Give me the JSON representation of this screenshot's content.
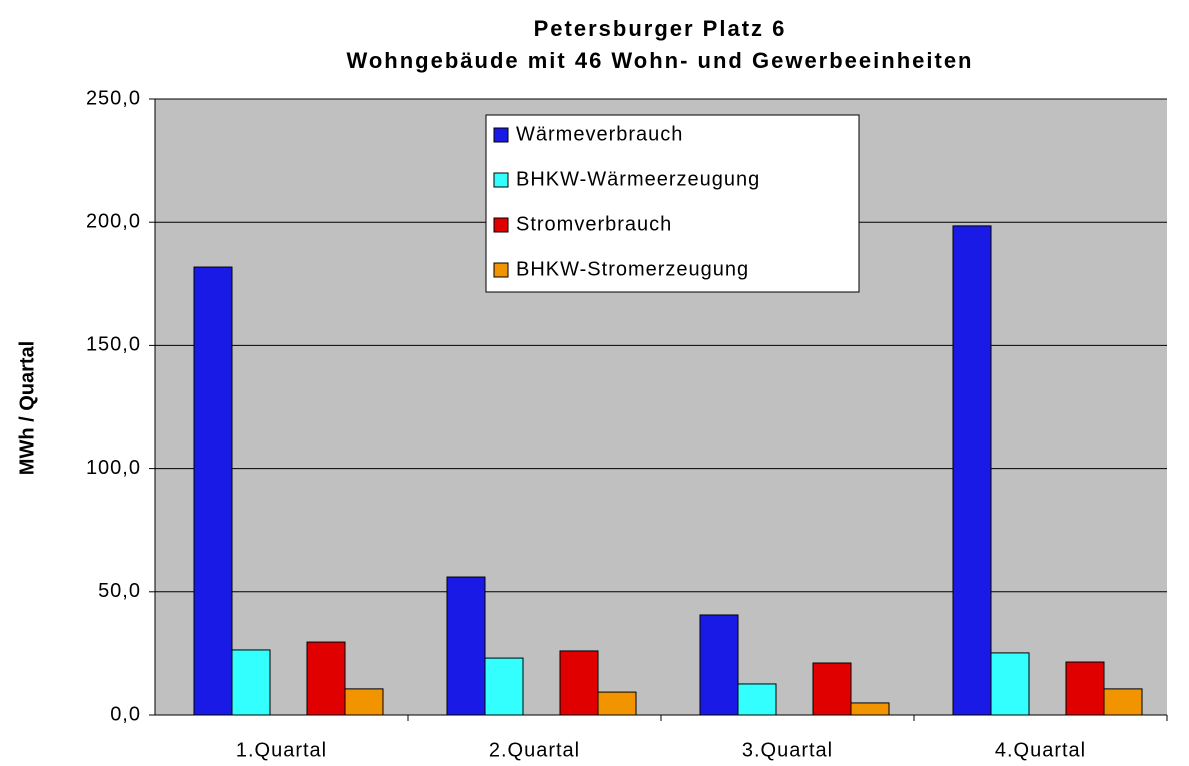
{
  "chart_data": {
    "type": "bar",
    "title": "Petersburger Platz 6",
    "subtitle": "Wohngebäude mit 46 Wohn- und Gewerbeeinheiten",
    "y_label": "MWh / Quartal",
    "categories": [
      "1.Quartal",
      "2.Quartal",
      "3.Quartal",
      "4.Quartal"
    ],
    "series": [
      {
        "name": "Wärmeverbrauch",
        "color": "#1a1ae6",
        "values": [
          181.8,
          56,
          40.6,
          198.5
        ]
      },
      {
        "name": "BHKW-Wärmeerzeugung",
        "color": "#33ffff",
        "values": [
          26.4,
          23.1,
          12.6,
          25.2
        ]
      },
      {
        "name": "Stromverbrauch",
        "color": "#e00000",
        "values": [
          29.6,
          26,
          21.1,
          21.5
        ]
      },
      {
        "name": "BHKW-Stromerzeugung",
        "color": "#f29400",
        "values": [
          10.6,
          9.3,
          4.9,
          10.6
        ]
      }
    ],
    "ylim": [
      0,
      250
    ],
    "yticks": [
      {
        "value": 0,
        "label": "0,0"
      },
      {
        "value": 50,
        "label": "50,0"
      },
      {
        "value": 100,
        "label": "100,0"
      },
      {
        "value": 150,
        "label": "150,0"
      },
      {
        "value": 200,
        "label": "200,0"
      },
      {
        "value": 250,
        "label": "250,0"
      }
    ],
    "grid": true,
    "legend": "top"
  }
}
